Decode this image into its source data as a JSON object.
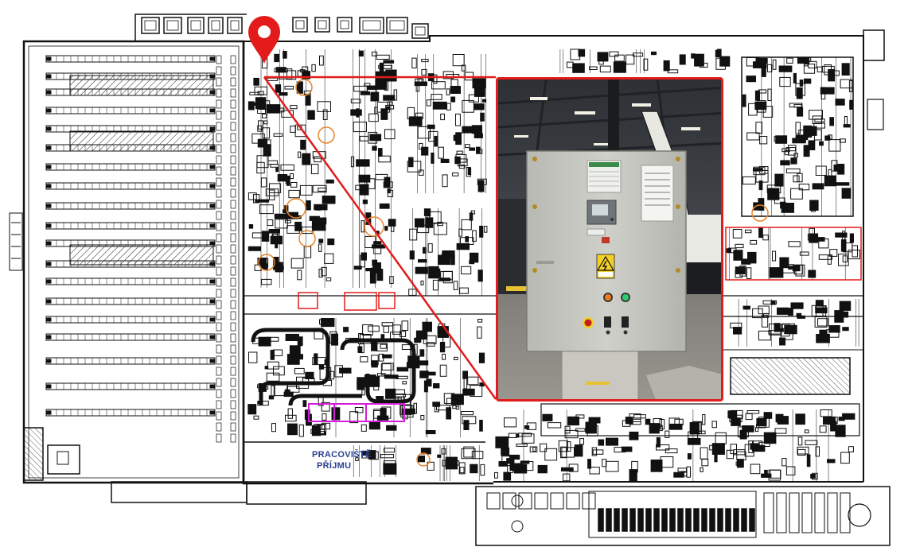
{
  "map": {
    "area_label_line1": "PRACOVIŠTĚ",
    "area_label_line2": "PŘÍJMU"
  },
  "marker": {
    "icon": "location-pin-icon",
    "color": "#e31b1b"
  },
  "photo": {
    "subject": "electrical-control-cabinet",
    "warning_sign_icon": "high-voltage-warning-icon"
  },
  "colors": {
    "plan_line": "#111111",
    "highlight_red": "#e31b1b",
    "orange_marks": "#e8832a",
    "magenta_zone": "#d41fd6",
    "blue_label": "#2a3f8f"
  }
}
